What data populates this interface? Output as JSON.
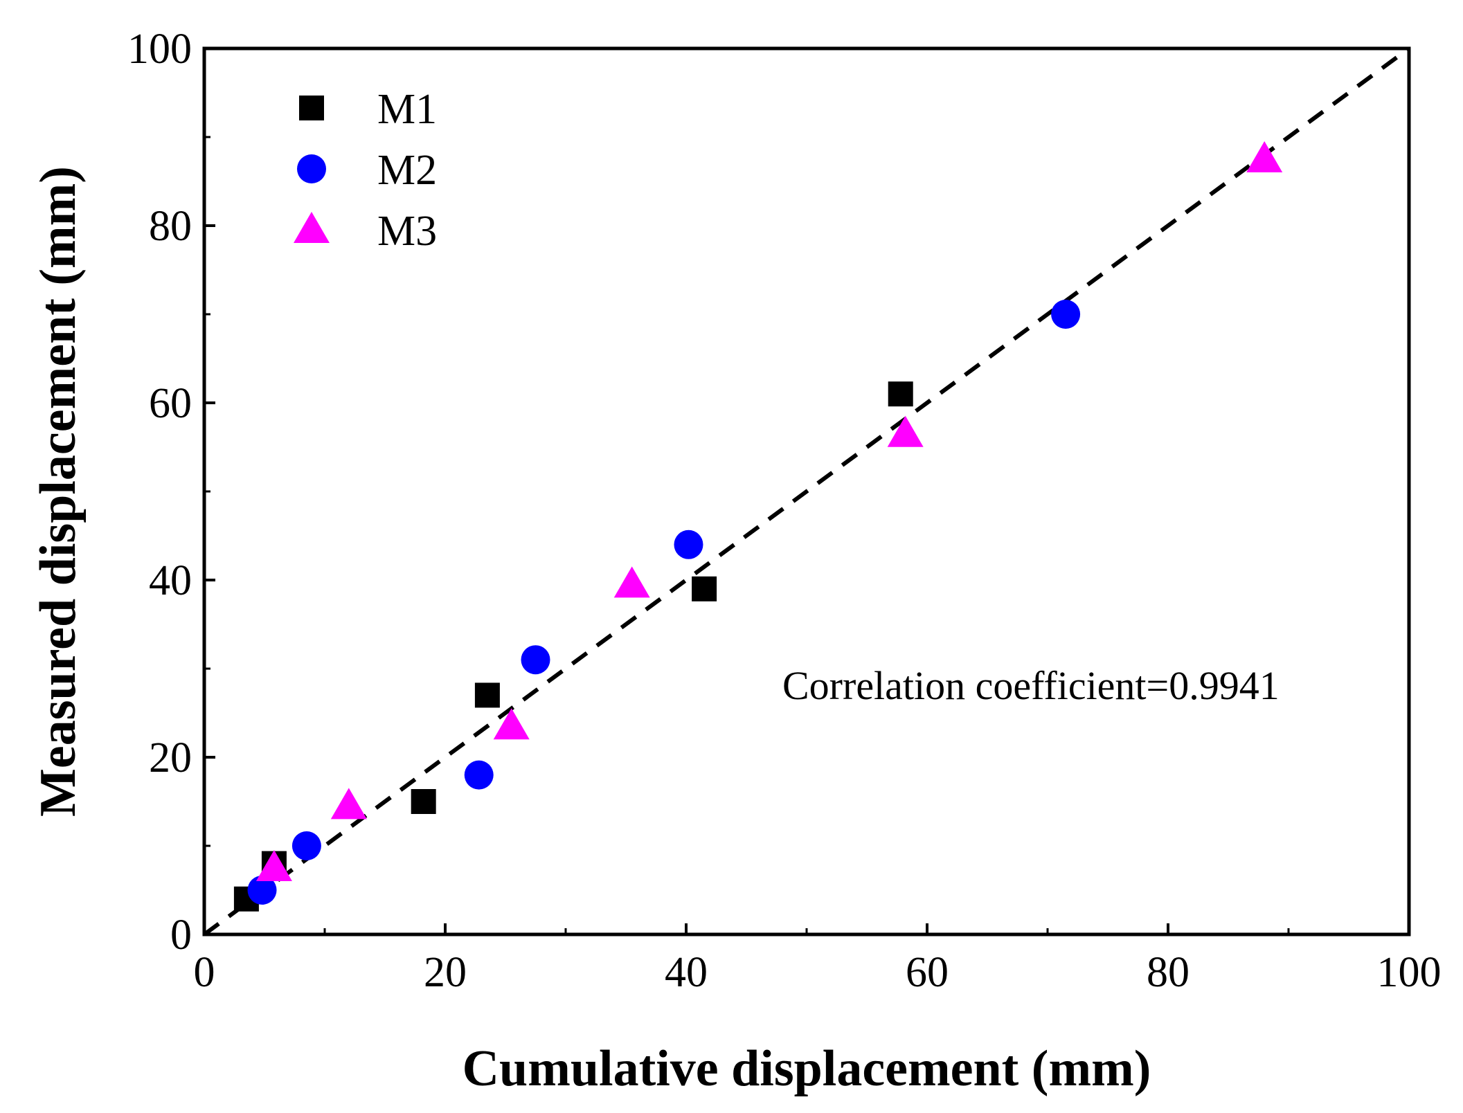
{
  "chart_data": {
    "type": "scatter",
    "title": "",
    "xlabel": "Cumulative displacement (mm)",
    "ylabel": "Measured displacement (mm)",
    "xlim": [
      0,
      100
    ],
    "ylim": [
      0,
      100
    ],
    "xticks": [
      0,
      20,
      40,
      60,
      80,
      100
    ],
    "yticks": [
      0,
      20,
      40,
      60,
      80,
      100
    ],
    "grid": false,
    "legend_position": "top-left",
    "reference_line": {
      "type": "y=x",
      "style": "dashed",
      "color": "#000000"
    },
    "annotation": "Correlation coefficient=0.9941",
    "series": [
      {
        "name": "M1",
        "marker": "square",
        "color": "#000000",
        "x": [
          3.5,
          5.8,
          18.2,
          23.5,
          41.5,
          57.8
        ],
        "y": [
          4,
          8,
          15,
          27,
          39,
          61
        ]
      },
      {
        "name": "M2",
        "marker": "circle",
        "color": "#0000ff",
        "x": [
          4.8,
          8.5,
          22.8,
          27.5,
          40.2,
          71.5
        ],
        "y": [
          5,
          10,
          18,
          31,
          44,
          70
        ]
      },
      {
        "name": "M3",
        "marker": "triangle",
        "color": "#ff00ff",
        "x": [
          5.8,
          12.0,
          25.5,
          35.5,
          58.2,
          88.0
        ],
        "y": [
          7.5,
          14.5,
          23.5,
          39.5,
          56.5,
          87.5
        ]
      }
    ]
  }
}
